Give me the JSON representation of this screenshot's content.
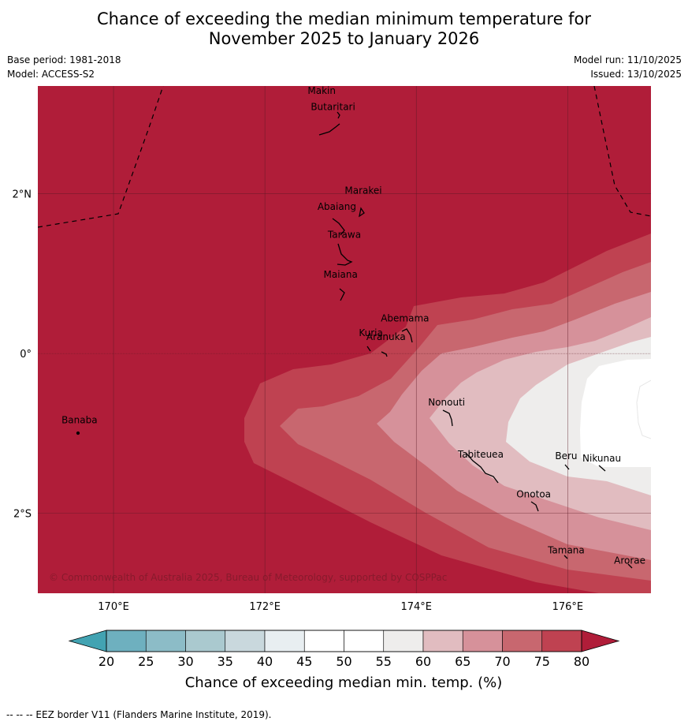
{
  "title_line1": "Chance of exceeding the median minimum temperature for",
  "title_line2": "November 2025 to January 2026",
  "base_period": "Base period: 1981-2018",
  "model": "Model: ACCESS-S2",
  "model_run": "Model run: 11/10/2025",
  "issued": "Issued: 13/10/2025",
  "copyright": "© Commonwealth of Australia 2025, Bureau of Meteorology, supported by COSPPac",
  "footnote": "--  --  -- EEZ border V11 (Flanders Marine Institute, 2019).",
  "map": {
    "lon_range": [
      169,
      177.1
    ],
    "lat_range": [
      -3.0,
      3.35
    ],
    "lon_ticks": [
      {
        "value": 170,
        "label": "170°E"
      },
      {
        "value": 172,
        "label": "172°E"
      },
      {
        "value": 174,
        "label": "174°E"
      },
      {
        "value": 176,
        "label": "176°E"
      }
    ],
    "lat_ticks": [
      {
        "value": 2,
        "label": "2°N"
      },
      {
        "value": 0,
        "label": "0°"
      },
      {
        "value": -2,
        "label": "2°S"
      }
    ],
    "islands": [
      {
        "name": "Makin",
        "lon": 172.75,
        "lat": 3.25
      },
      {
        "name": "Butaritari",
        "lon": 172.9,
        "lat": 3.05
      },
      {
        "name": "Marakei",
        "lon": 173.3,
        "lat": 2.0
      },
      {
        "name": "Abaiang",
        "lon": 172.95,
        "lat": 1.8
      },
      {
        "name": "Tarawa",
        "lon": 173.05,
        "lat": 1.45
      },
      {
        "name": "Maiana",
        "lon": 173.0,
        "lat": 0.95
      },
      {
        "name": "Abemama",
        "lon": 173.85,
        "lat": 0.4
      },
      {
        "name": "Kuria",
        "lon": 173.4,
        "lat": 0.22
      },
      {
        "name": "Aranuka",
        "lon": 173.6,
        "lat": 0.17
      },
      {
        "name": "Nonouti",
        "lon": 174.4,
        "lat": -0.65
      },
      {
        "name": "Banaba",
        "lon": 169.55,
        "lat": -0.87
      },
      {
        "name": "Tabiteuea",
        "lon": 174.85,
        "lat": -1.3
      },
      {
        "name": "Beru",
        "lon": 175.98,
        "lat": -1.32
      },
      {
        "name": "Nikunau",
        "lon": 176.45,
        "lat": -1.35
      },
      {
        "name": "Onotoa",
        "lon": 175.55,
        "lat": -1.8
      },
      {
        "name": "Tamana",
        "lon": 175.98,
        "lat": -2.5
      },
      {
        "name": "Arorae",
        "lon": 176.82,
        "lat": -2.63
      }
    ]
  },
  "colorbar": {
    "levels": [
      20,
      25,
      30,
      35,
      40,
      45,
      50,
      55,
      60,
      65,
      70,
      75,
      80
    ],
    "tick_labels": [
      "20",
      "25",
      "30",
      "35",
      "40",
      "45",
      "50",
      "55",
      "60",
      "65",
      "70",
      "75",
      "80"
    ],
    "colors": [
      "#6eb0bf",
      "#8cbcc7",
      "#aac9cf",
      "#c9d8dd",
      "#e8eef1",
      "#ffffff",
      "#ffffff",
      "#eeedec",
      "#e1bcc0",
      "#d6919a",
      "#c8676f",
      "#bf4251"
    ],
    "under_color": "#42a3b2",
    "over_color": "#b01d39",
    "label": "Chance of exceeding median min. temp. (%)"
  }
}
